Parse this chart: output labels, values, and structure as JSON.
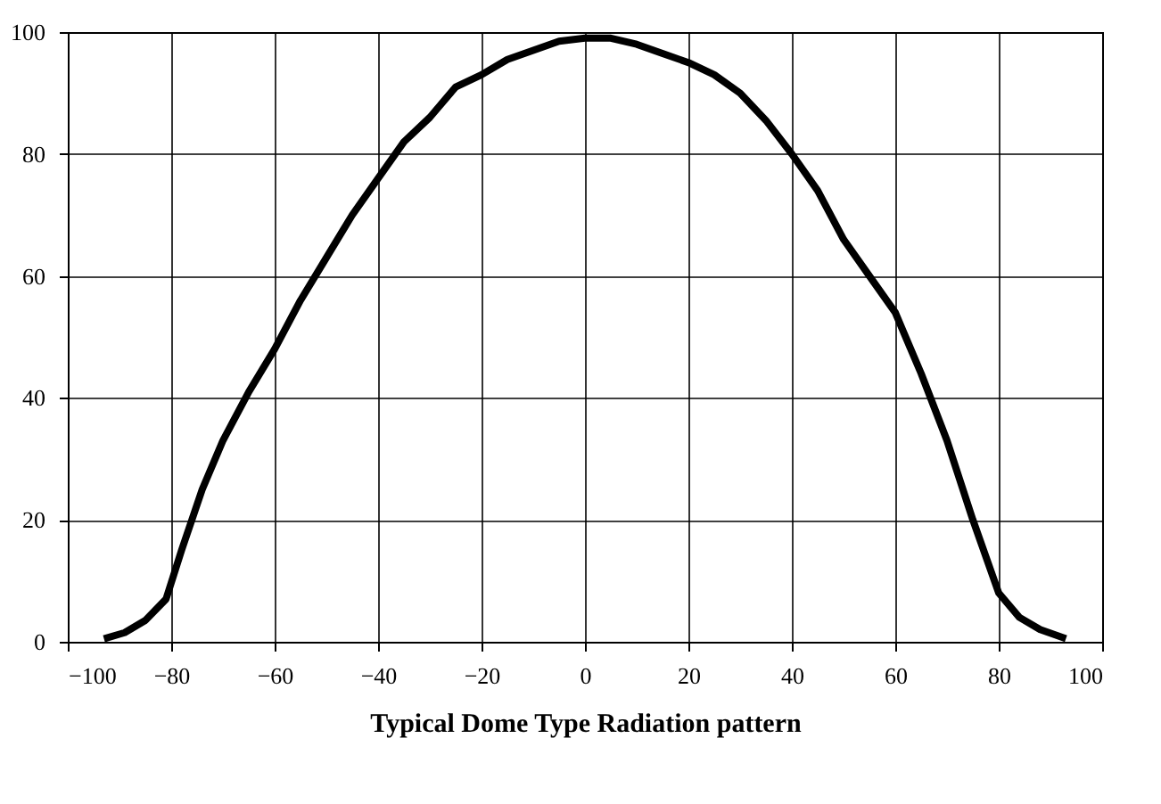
{
  "chart_data": {
    "type": "line",
    "xlabel": "Typical Dome Type Radiation pattern",
    "x": [
      -93,
      -89,
      -85,
      -81,
      -78,
      -74,
      -70,
      -65,
      -60,
      -55,
      -50,
      -45,
      -40,
      -35,
      -30,
      -25,
      -20,
      -15,
      -10,
      -5,
      0,
      5,
      10,
      15,
      20,
      25,
      30,
      35,
      40,
      45,
      50,
      55,
      60,
      65,
      70,
      75,
      80,
      84,
      88,
      93
    ],
    "series": [
      {
        "color": "#000000",
        "values": [
          0.5,
          1.5,
          3.5,
          7,
          15,
          25,
          33,
          41,
          48,
          56,
          63,
          70,
          76,
          82,
          86,
          91,
          93,
          95.5,
          97,
          98.5,
          99,
          99,
          98,
          96.5,
          95,
          93,
          90,
          85.5,
          80,
          74,
          66,
          60,
          54,
          44,
          33,
          20,
          8,
          4,
          2,
          0.5
        ]
      }
    ],
    "xlim": [
      -100,
      100
    ],
    "xticks": [
      -100,
      -80,
      -60,
      -40,
      -20,
      0,
      20,
      40,
      60,
      80,
      100
    ],
    "ylim": [
      0,
      100
    ],
    "yticks": [
      0,
      20,
      40,
      60,
      80,
      100
    ],
    "grid": true,
    "marker": "none",
    "line_style": "solid",
    "legend": false
  }
}
